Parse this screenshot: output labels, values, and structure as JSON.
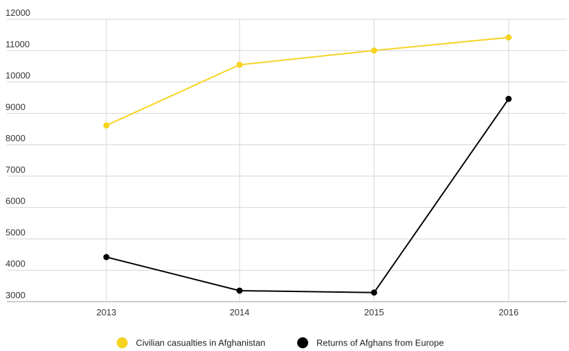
{
  "chart_data": {
    "type": "line",
    "title": "",
    "xlabel": "",
    "ylabel": "",
    "x": [
      "2013",
      "2014",
      "2015",
      "2016"
    ],
    "y_ticks": [
      3000,
      4000,
      5000,
      6000,
      7000,
      8000,
      9000,
      10000,
      11000,
      12000
    ],
    "ylim": [
      3000,
      12000
    ],
    "grid": true,
    "legend_position": "bottom-center",
    "series": [
      {
        "name": "Civilian casualties in Afghanistan",
        "color": "#f6d321",
        "values": [
          8615,
          10548,
          11002,
          11418
        ]
      },
      {
        "name": "Returns of Afghans from Europe",
        "color": "#000000",
        "values": [
          4420,
          3350,
          3290,
          9460
        ]
      }
    ]
  }
}
